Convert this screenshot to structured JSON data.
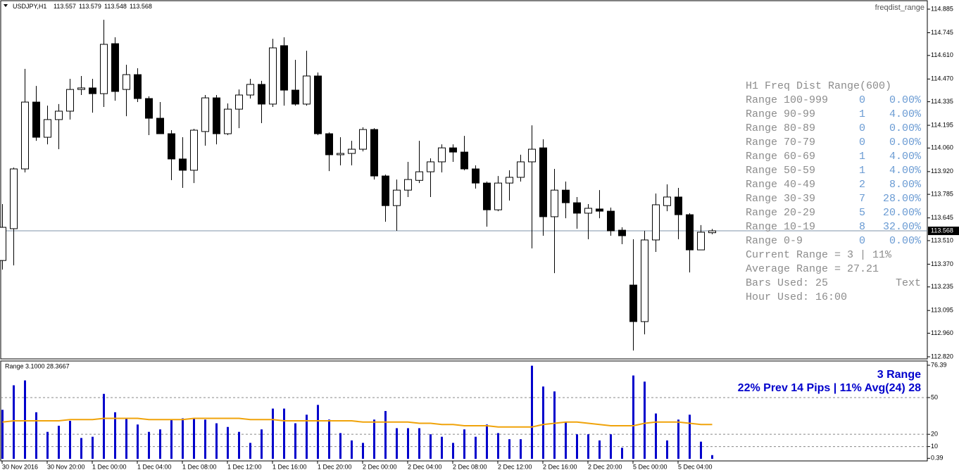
{
  "chart_data": [
    {
      "type": "candlestick",
      "title": "USDJPY,H1",
      "indicator": "freqdist_range",
      "categories": [
        "30 Nov 2016",
        null,
        null,
        null,
        "30 Nov 20:00",
        null,
        null,
        null,
        "1 Dec 00:00",
        null,
        null,
        null,
        "1 Dec 04:00",
        null,
        null,
        null,
        "1 Dec 08:00",
        null,
        null,
        null,
        "1 Dec 12:00",
        null,
        null,
        null,
        "1 Dec 16:00",
        null,
        null,
        null,
        "1 Dec 20:00",
        null,
        null,
        null,
        "2 Dec 00:00",
        null,
        null,
        null,
        "2 Dec 04:00",
        null,
        null,
        null,
        "2 Dec 08:00",
        null,
        null,
        null,
        "2 Dec 12:00",
        null,
        null,
        null,
        "2 Dec 16:00",
        null,
        null,
        null,
        "2 Dec 20:00",
        null,
        null,
        null,
        "5 Dec 00:00",
        null,
        null,
        null,
        "5 Dec 04:00",
        null,
        null,
        null
      ],
      "open": [
        113.392,
        113.581,
        113.936,
        114.333,
        114.124,
        114.229,
        114.279,
        114.408,
        114.417,
        114.383,
        114.68,
        114.408,
        114.496,
        114.354,
        114.237,
        114.145,
        113.995,
        113.928,
        114.158,
        114.358,
        114.145,
        114.291,
        114.375,
        114.438,
        114.321,
        114.668,
        114.404,
        114.321,
        114.488,
        114.145,
        114.02,
        114.028,
        114.053,
        114.17,
        113.894,
        113.718,
        113.81,
        113.868,
        113.919,
        113.978,
        114.061,
        114.036,
        113.936,
        113.852,
        113.693,
        113.852,
        113.886,
        113.978,
        114.061,
        113.652,
        113.81,
        113.735,
        113.673,
        113.698,
        113.685,
        113.572,
        113.246,
        113.029,
        113.514,
        113.718,
        113.769,
        113.664,
        113.455,
        113.557
      ],
      "high": [
        113.727,
        113.944,
        114.53,
        114.429,
        114.312,
        114.321,
        114.471,
        114.488,
        114.471,
        114.822,
        114.718,
        114.555,
        114.534,
        114.367,
        114.333,
        114.166,
        114.124,
        114.174,
        114.375,
        114.375,
        114.325,
        114.408,
        114.471,
        114.459,
        114.709,
        114.718,
        114.584,
        114.638,
        114.509,
        114.153,
        114.124,
        114.103,
        114.183,
        114.178,
        113.902,
        113.873,
        113.978,
        114.103,
        113.999,
        114.082,
        114.082,
        114.132,
        113.957,
        113.861,
        113.894,
        113.928,
        114.02,
        114.195,
        114.112,
        113.936,
        113.861,
        113.769,
        113.727,
        113.81,
        113.706,
        113.589,
        113.518,
        113.568,
        113.79,
        113.844,
        113.823,
        113.673,
        113.602,
        113.579
      ],
      "low": [
        113.338,
        113.363,
        113.915,
        114.103,
        114.082,
        114.053,
        114.229,
        114.375,
        114.27,
        114.304,
        114.341,
        114.249,
        114.333,
        114.137,
        114.145,
        113.869,
        113.823,
        113.852,
        114.074,
        114.082,
        114.137,
        114.178,
        114.354,
        114.208,
        114.304,
        114.312,
        114.312,
        114.312,
        114.137,
        113.923,
        113.957,
        113.957,
        114.04,
        113.873,
        113.622,
        113.568,
        113.769,
        113.852,
        113.769,
        113.915,
        113.978,
        113.928,
        113.819,
        113.593,
        113.685,
        113.748,
        113.861,
        113.464,
        113.539,
        113.317,
        113.643,
        113.581,
        113.518,
        113.643,
        113.539,
        113.489,
        112.857,
        112.953,
        113.443,
        113.685,
        113.518,
        113.321,
        113.455,
        113.548
      ],
      "close": [
        113.589,
        113.936,
        114.333,
        114.124,
        114.229,
        114.279,
        114.408,
        114.417,
        114.383,
        114.676,
        114.396,
        114.496,
        114.354,
        114.237,
        114.145,
        113.995,
        113.928,
        114.166,
        114.358,
        114.145,
        114.291,
        114.375,
        114.438,
        114.321,
        114.655,
        114.404,
        114.321,
        114.488,
        114.145,
        114.02,
        114.028,
        114.053,
        114.17,
        113.894,
        113.718,
        113.81,
        113.873,
        113.919,
        113.978,
        114.061,
        114.036,
        113.936,
        113.852,
        113.693,
        113.852,
        113.886,
        113.978,
        114.053,
        113.652,
        113.81,
        113.735,
        113.673,
        113.702,
        113.685,
        113.568,
        113.539,
        113.029,
        113.514,
        113.723,
        113.769,
        113.664,
        113.455,
        113.56,
        113.568
      ],
      "up_color": "#ffffff",
      "down_color": "#000000",
      "price_line_color": "#7f93a8",
      "ylim": [
        112.82,
        114.885
      ],
      "yticks": [
        114.885,
        114.745,
        {
          "value": 114.61,
          "label": "114.610"
        },
        {
          "value": 114.47,
          "label": "114.470"
        },
        114.335,
        114.195,
        {
          "value": 114.06,
          "label": "114.060"
        },
        {
          "value": 113.92,
          "label": "113.920"
        },
        113.785,
        113.645,
        {
          "value": 113.51,
          "label": "113.510"
        },
        {
          "value": 113.37,
          "label": "113.370"
        },
        113.235,
        113.095,
        {
          "value": 112.96,
          "label": "112.960"
        },
        {
          "value": 112.82,
          "label": "112.820"
        }
      ],
      "panel": {
        "title": "H1 Freq Dist Range(600)",
        "rows": [
          [
            "Range 100-999",
            0,
            "0.00%"
          ],
          [
            "Range 90-99",
            1,
            "4.00%"
          ],
          [
            "Range 80-89",
            0,
            "0.00%"
          ],
          [
            "Range 70-79",
            0,
            "0.00%"
          ],
          [
            "Range 60-69",
            1,
            "4.00%"
          ],
          [
            "Range 50-59",
            1,
            "4.00%"
          ],
          [
            "Range 40-49",
            2,
            "8.00%"
          ],
          [
            "Range 30-39",
            7,
            "28.00%"
          ],
          [
            "Range 20-29",
            5,
            "20.00%"
          ],
          [
            "Range 10-19",
            8,
            "32.00%"
          ],
          [
            "Range 0-9",
            0,
            "0.00%"
          ]
        ],
        "current": "Current Range = 3 | 11%",
        "average": "Average Range = 27.21",
        "bars": "Bars Used: 25",
        "text": "Text",
        "hour": "Hour Used: 16:00"
      }
    },
    {
      "type": "bar",
      "title": "Range 3.1000 28.3667",
      "values": [
        40,
        60,
        64,
        38,
        22,
        27,
        31,
        17,
        18,
        53,
        38,
        33,
        28,
        22,
        24,
        32,
        33,
        33,
        32,
        29,
        26,
        22,
        13,
        24,
        41,
        41,
        29,
        36,
        44,
        32,
        21,
        15,
        13,
        32,
        39,
        25,
        25,
        25,
        20,
        18,
        13,
        24,
        18,
        28,
        21,
        16,
        16,
        76,
        59,
        55,
        30,
        20,
        20,
        15,
        20,
        9,
        68,
        63,
        37,
        15,
        32,
        36,
        14,
        3
      ],
      "color": "#0000cc",
      "average": {
        "color": "#f0a30a",
        "values": [
          30,
          31,
          31,
          31,
          31,
          31,
          32,
          32,
          32,
          33,
          33,
          33,
          33,
          32,
          32,
          32,
          32,
          33,
          33,
          33,
          33,
          33,
          32,
          32,
          32,
          31,
          31,
          31,
          31,
          31,
          31,
          31,
          30,
          30,
          30,
          30,
          30,
          29,
          29,
          28,
          28,
          27,
          27,
          27,
          26,
          26,
          26,
          26,
          28,
          29,
          30,
          30,
          29,
          28,
          27,
          27,
          27,
          29,
          30,
          30,
          30,
          29,
          28,
          28
        ]
      },
      "ylim": [
        0,
        76.39
      ],
      "yticks": [
        76.39,
        50,
        20,
        10,
        0.39
      ],
      "annotations": [
        "3 Range",
        "22% Prev 14 Pips | 11% Avg(24) 28"
      ]
    }
  ]
}
